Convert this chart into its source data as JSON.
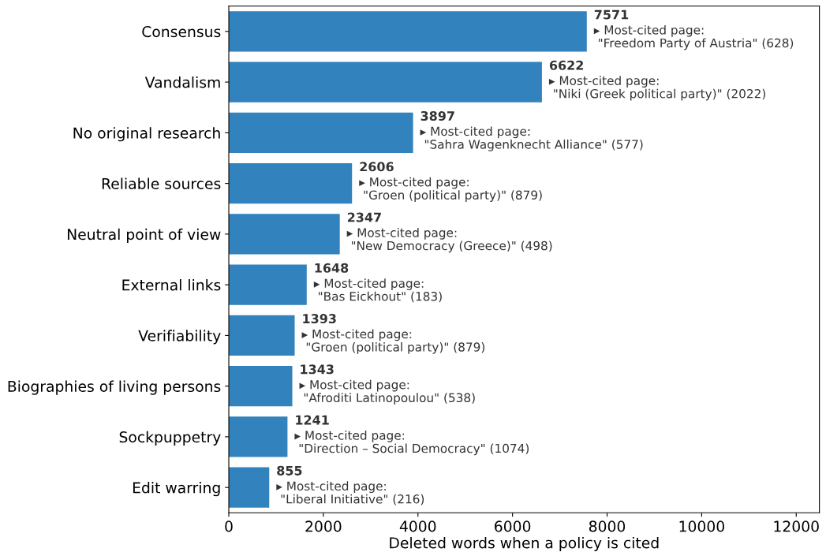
{
  "chart_data": {
    "type": "bar",
    "orientation": "horizontal",
    "xlabel": "Deleted words when a policy is cited",
    "categories": [
      "Consensus",
      "Vandalism",
      "No original research",
      "Reliable sources",
      "Neutral point of view",
      "External links",
      "Verifiability",
      "Biographies of living persons",
      "Sockpuppetry",
      "Edit warring"
    ],
    "values": [
      7571,
      6622,
      3897,
      2606,
      2347,
      1648,
      1393,
      1343,
      1241,
      855
    ],
    "color": "#3182bd",
    "data_labels": true,
    "xlim": [
      0,
      12490
    ],
    "xticks": [
      0,
      2000,
      4000,
      6000,
      8000,
      10000,
      12000
    ],
    "grid": false,
    "annotations": [
      {
        "text": "▸ Most-cited page:\n \"Freedom Party of Austria\" (628)",
        "x": 7571,
        "y": "Consensus"
      },
      {
        "text": "▸ Most-cited page:\n \"Niki (Greek political party)\" (2022)",
        "x": 6622,
        "y": "Vandalism"
      },
      {
        "text": "▸ Most-cited page:\n \"Sahra Wagenknecht Alliance\" (577)",
        "x": 3897,
        "y": "No original research"
      },
      {
        "text": "▸ Most-cited page:\n \"Groen (political party)\" (879)",
        "x": 2606,
        "y": "Reliable sources"
      },
      {
        "text": "▸ Most-cited page:\n \"New Democracy (Greece)\" (498)",
        "x": 2347,
        "y": "Neutral point of view"
      },
      {
        "text": "▸ Most-cited page:\n \"Bas Eickhout\" (183)",
        "x": 1648,
        "y": "External links"
      },
      {
        "text": "▸ Most-cited page:\n \"Groen (political party)\" (879)",
        "x": 1393,
        "y": "Verifiability"
      },
      {
        "text": "▸ Most-cited page:\n \"Afroditi Latinopoulou\" (538)",
        "x": 1343,
        "y": "Biographies of living persons"
      },
      {
        "text": "▸ Most-cited page:\n \"Direction – Social Democracy\" (1074)",
        "x": 1241,
        "y": "Sockpuppetry"
      },
      {
        "text": "▸ Most-cited page:\n \"Liberal Initiative\" (216)",
        "x": 855,
        "y": "Edit warring"
      }
    ]
  }
}
